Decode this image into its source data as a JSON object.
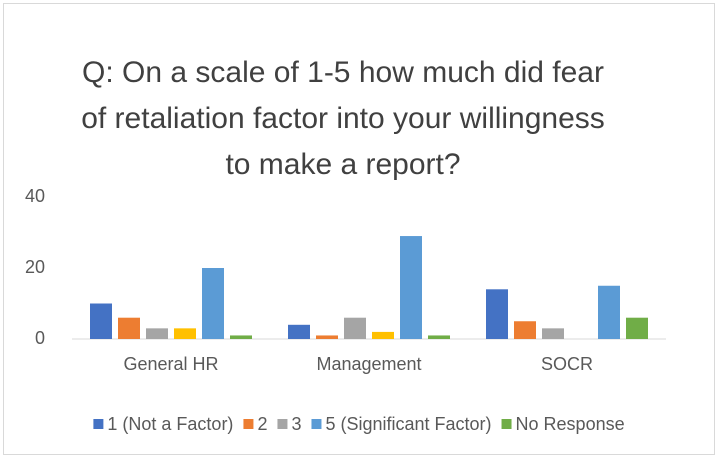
{
  "chart_data": {
    "type": "bar",
    "title": "Q: On a scale of 1-5 how much did fear of retaliation factor into your willingness to make a report?",
    "categories": [
      "General HR",
      "Management",
      "SOCR"
    ],
    "series": [
      {
        "name": "1 (Not a Factor)",
        "color": "#4472c4",
        "values": [
          10,
          4,
          14
        ]
      },
      {
        "name": "2",
        "color": "#ed7d31",
        "values": [
          6,
          1,
          5
        ]
      },
      {
        "name": "3",
        "color": "#a5a5a5",
        "values": [
          3,
          6,
          3
        ]
      },
      {
        "name": null,
        "color": "#ffc000",
        "values": [
          3,
          2,
          0
        ]
      },
      {
        "name": "5 (Significant Factor)",
        "color": "#5b9bd5",
        "values": [
          20,
          29,
          15
        ]
      },
      {
        "name": "No Response",
        "color": "#70ad47",
        "values": [
          1,
          1,
          6
        ]
      }
    ],
    "ylim": [
      0,
      40
    ],
    "yticks": [
      0,
      20,
      40
    ],
    "grid": false,
    "legend": "bottom"
  }
}
